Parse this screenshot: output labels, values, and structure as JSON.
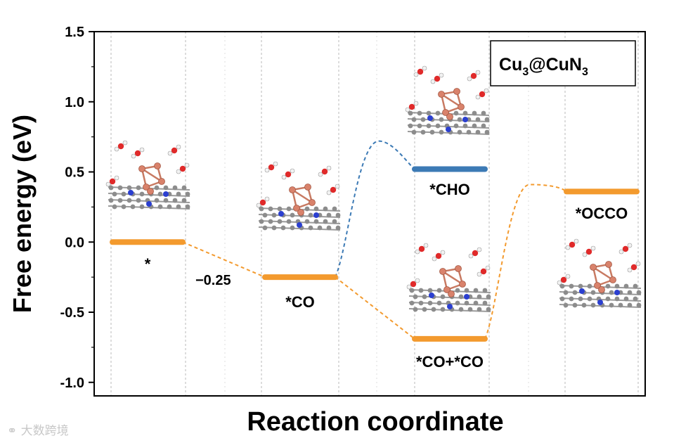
{
  "chart_data": {
    "type": "line",
    "subtype": "free-energy-diagram",
    "title": "",
    "xlabel": "Reaction coordinate",
    "ylabel": "Free energy (eV)",
    "ylim": [
      -1.1,
      1.5
    ],
    "yticks": [
      -1.0,
      -0.5,
      0.0,
      0.5,
      1.0,
      1.5
    ],
    "yticklabels": [
      "-1.0",
      "-0.5",
      "0.0",
      "0.5",
      "1.0",
      "1.5"
    ],
    "grid": "vertical dashed",
    "legend_box": {
      "text": "Cu",
      "sub1": "3",
      "mid": "@CuN",
      "sub2": "3",
      "placement": "top-right"
    },
    "states": [
      {
        "label": "*",
        "step": 1,
        "energy": 0.0,
        "color": "#f39a2e"
      },
      {
        "label": "*CO",
        "step": 2,
        "energy": -0.25,
        "color": "#f39a2e"
      },
      {
        "label": "*CHO",
        "step": 3,
        "energy": 0.52,
        "color": "#3c7ab5"
      },
      {
        "label": "*CO+*CO",
        "step": 3,
        "energy": -0.69,
        "color": "#f39a2e"
      },
      {
        "label": "*OCCO",
        "step": 4,
        "energy": 0.36,
        "color": "#f39a2e"
      }
    ],
    "connections": [
      {
        "from": 0,
        "to": 1,
        "color": "#f39a2e"
      },
      {
        "from": 1,
        "to": 2,
        "color": "#3c7ab5",
        "barrier": 0.72
      },
      {
        "from": 1,
        "to": 3,
        "color": "#f39a2e"
      },
      {
        "from": 3,
        "to": 4,
        "color": "#f39a2e",
        "barrier": 0.41
      }
    ],
    "annotations": [
      {
        "text": "−0.25"
      }
    ]
  },
  "watermark": "大数跨境",
  "icons": [
    "cluster-structure-icon"
  ]
}
